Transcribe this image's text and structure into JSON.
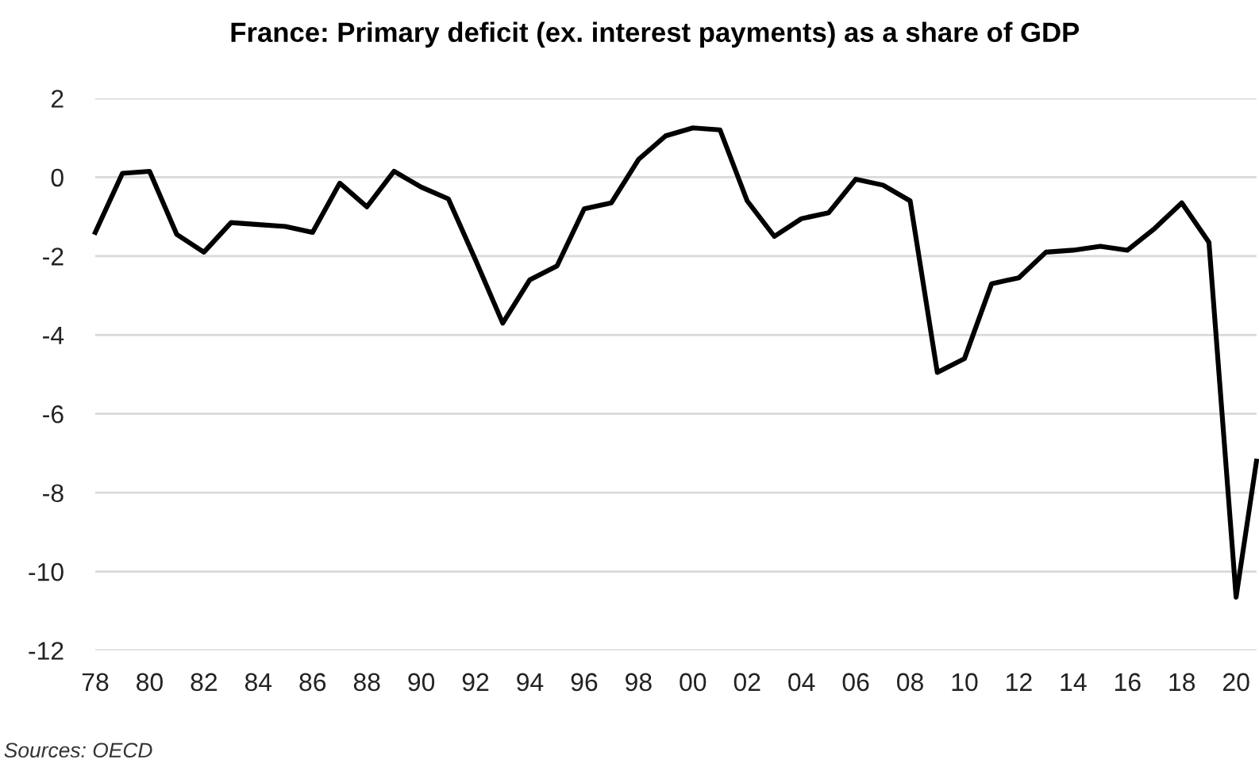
{
  "chart_data": {
    "type": "line",
    "title": "France: Primary deficit (ex. interest payments) as a share of GDP",
    "x": [
      1978,
      1979,
      1980,
      1981,
      1982,
      1983,
      1984,
      1985,
      1986,
      1987,
      1988,
      1989,
      1990,
      1991,
      1992,
      1993,
      1994,
      1995,
      1996,
      1997,
      1998,
      1999,
      2000,
      2001,
      2002,
      2003,
      2004,
      2005,
      2006,
      2007,
      2008,
      2009,
      2010,
      2011,
      2012,
      2013,
      2014,
      2015,
      2016,
      2017,
      2018,
      2019,
      2020,
      2020.75
    ],
    "series": [
      {
        "color": "#000000",
        "values": [
          -1.4,
          0.1,
          0.15,
          -1.45,
          -1.9,
          -1.15,
          -1.2,
          -1.25,
          -1.4,
          -0.15,
          -0.75,
          0.15,
          -0.25,
          -0.55,
          -2.1,
          -3.7,
          -2.6,
          -2.25,
          -0.8,
          -0.65,
          0.45,
          1.05,
          1.25,
          1.2,
          -0.6,
          -1.5,
          -1.05,
          -0.9,
          -0.05,
          -0.2,
          -0.6,
          -4.95,
          -4.6,
          -2.7,
          -2.55,
          -1.9,
          -1.85,
          -1.75,
          -1.85,
          -1.3,
          -0.65,
          -1.65,
          -10.65,
          -7.2
        ]
      }
    ],
    "xlim": [
      1978,
      2020.75
    ],
    "xticks": [
      {
        "value": 1978,
        "label": "78"
      },
      {
        "value": 1980,
        "label": "80"
      },
      {
        "value": 1982,
        "label": "82"
      },
      {
        "value": 1984,
        "label": "84"
      },
      {
        "value": 1986,
        "label": "86"
      },
      {
        "value": 1988,
        "label": "88"
      },
      {
        "value": 1990,
        "label": "90"
      },
      {
        "value": 1992,
        "label": "92"
      },
      {
        "value": 1994,
        "label": "94"
      },
      {
        "value": 1996,
        "label": "96"
      },
      {
        "value": 1998,
        "label": "98"
      },
      {
        "value": 2000,
        "label": "00"
      },
      {
        "value": 2002,
        "label": "02"
      },
      {
        "value": 2004,
        "label": "04"
      },
      {
        "value": 2006,
        "label": "06"
      },
      {
        "value": 2008,
        "label": "08"
      },
      {
        "value": 2010,
        "label": "10"
      },
      {
        "value": 2012,
        "label": "12"
      },
      {
        "value": 2014,
        "label": "14"
      },
      {
        "value": 2016,
        "label": "16"
      },
      {
        "value": 2018,
        "label": "18"
      },
      {
        "value": 2020,
        "label": "20"
      }
    ],
    "ylim": [
      -12,
      2
    ],
    "yticks": [
      2,
      0,
      -2,
      -4,
      -6,
      -8,
      -10,
      -12
    ],
    "grid": "y",
    "legend": false,
    "marker": "none",
    "line_style": "solid",
    "annotations": [
      "Sources: OECD"
    ]
  }
}
